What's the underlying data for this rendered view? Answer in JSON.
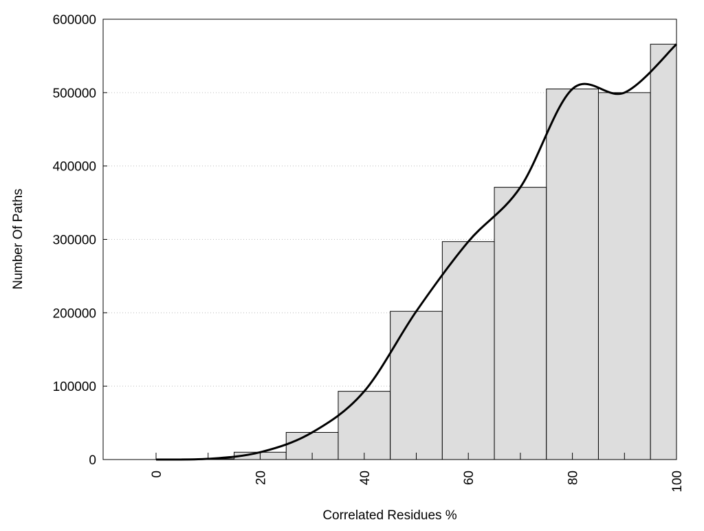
{
  "chart_data": {
    "type": "bar",
    "title": "",
    "xlabel": "Correlated Residues %",
    "ylabel": "Number Of Paths",
    "xlim": [
      -10,
      100
    ],
    "ylim": [
      0,
      600000
    ],
    "x_ticks": [
      "0",
      "20",
      "40",
      "60",
      "80",
      "100"
    ],
    "y_ticks": [
      "0",
      "100000",
      "200000",
      "300000",
      "400000",
      "500000",
      "600000"
    ],
    "grid": "horizontal dotted",
    "bar_color": "#dddddd",
    "categories": [
      0,
      10,
      20,
      30,
      40,
      50,
      60,
      70,
      80,
      90,
      100
    ],
    "values": [
      0,
      1000,
      10000,
      37000,
      93000,
      202000,
      297000,
      371000,
      505000,
      500000,
      566000
    ],
    "smooth_line": {
      "name": "trend",
      "color": "#000000"
    }
  }
}
